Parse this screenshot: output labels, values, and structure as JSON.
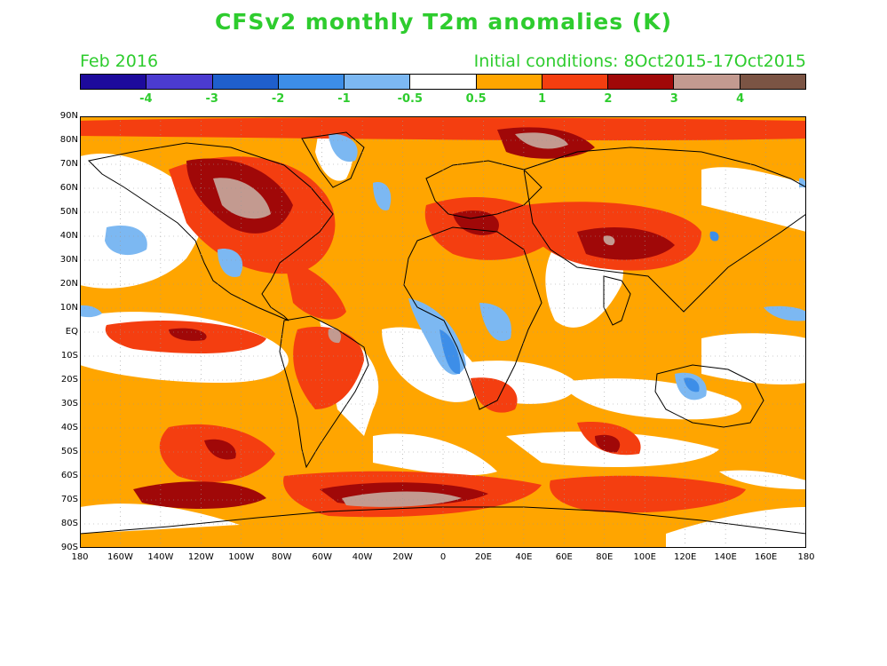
{
  "title": "CFSv2 monthly T2m anomalies (K)",
  "subtitle_left": "Feb 2016",
  "subtitle_right": "Initial conditions: 8Oct2015-17Oct2015",
  "colorbar": {
    "colors": [
      "#1d0a9c",
      "#4b3bd0",
      "#1f5fcc",
      "#3d8ee8",
      "#7cb8f2",
      "#ffffff",
      "#ffa500",
      "#f43e10",
      "#a00808",
      "#c39a90",
      "#7b5444"
    ],
    "labels": [
      "-4",
      "-3",
      "-2",
      "-1",
      "-0.5",
      "0.5",
      "1",
      "2",
      "3",
      "4"
    ]
  },
  "map": {
    "lat_labels": [
      "90N",
      "80N",
      "70N",
      "60N",
      "50N",
      "40N",
      "30N",
      "20N",
      "10N",
      "EQ",
      "10S",
      "20S",
      "30S",
      "40S",
      "50S",
      "60S",
      "70S",
      "80S",
      "90S"
    ],
    "lon_labels": [
      "180",
      "160W",
      "140W",
      "120W",
      "100W",
      "80W",
      "60W",
      "40W",
      "20W",
      "0",
      "20E",
      "40E",
      "60E",
      "80E",
      "100E",
      "120E",
      "140E",
      "160E",
      "180"
    ]
  }
}
